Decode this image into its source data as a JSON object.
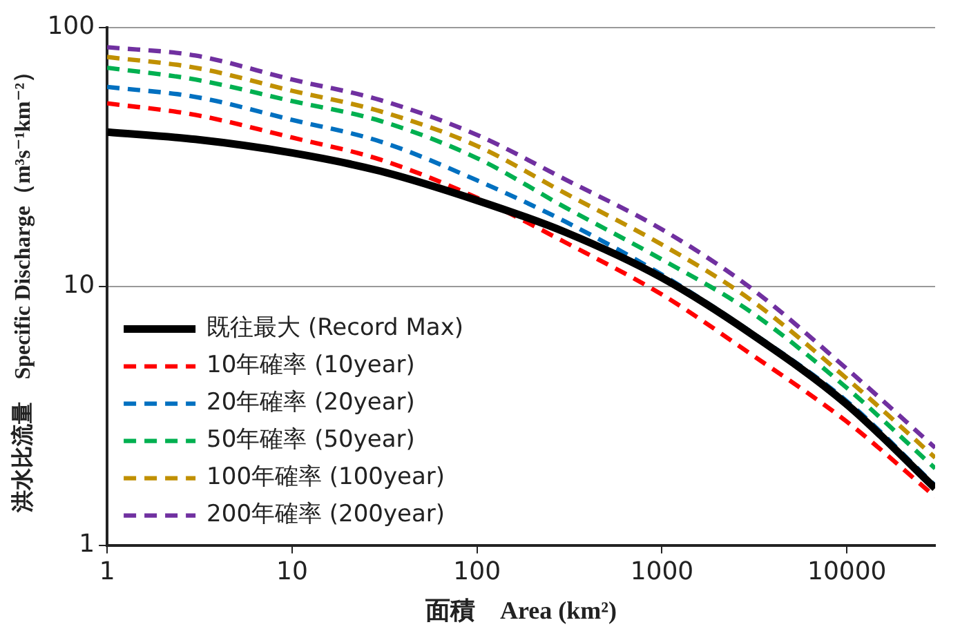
{
  "chart_data": {
    "type": "line",
    "xlabel": "面積　Area (km²)",
    "ylabel": "洪水比流量　Specific Discharge（m³s⁻¹km⁻²）",
    "x": [
      1,
      3,
      10,
      30,
      100,
      300,
      1000,
      3000,
      10000,
      30000
    ],
    "series": [
      {
        "name": "既往最大 (Record Max)",
        "color": "#000000",
        "line_style": "solid",
        "values": [
          39.5,
          37,
          32.8,
          27.9,
          21.5,
          16.2,
          10.8,
          6.6,
          3.5,
          1.66
        ]
      },
      {
        "name": "10年確率 (10year)",
        "color": "#ff0000",
        "values": [
          51,
          46,
          37.6,
          30.9,
          22,
          14.8,
          9.3,
          5.5,
          3.0,
          1.54
        ]
      },
      {
        "name": "20年確率 (20year)",
        "color": "#0070c0",
        "values": [
          59,
          54,
          44,
          36.3,
          25.7,
          17.8,
          11.1,
          6.7,
          3.6,
          1.7
        ]
      },
      {
        "name": "50年確率 (50year)",
        "color": "#00b050",
        "values": [
          70,
          63,
          52,
          43.6,
          31.3,
          20.2,
          12.7,
          8.0,
          4.05,
          1.98
        ]
      },
      {
        "name": "100年確率 (100year)",
        "color": "#c09000",
        "values": [
          77,
          70,
          57,
          47.5,
          34.9,
          22.9,
          14.5,
          8.9,
          4.4,
          2.18
        ]
      },
      {
        "name": "200年確率 (200year)",
        "color": "#7030a0",
        "values": [
          84,
          78,
          63,
          52.5,
          38.5,
          25.9,
          16.6,
          9.9,
          4.8,
          2.38
        ]
      }
    ],
    "log": "xy",
    "xlim": [
      1,
      30000
    ],
    "xticks": [
      1,
      10,
      100,
      1000,
      10000
    ],
    "ylim": [
      1,
      100
    ],
    "yticks": [
      1,
      10,
      100
    ],
    "grid": "y",
    "legend": "bottom left",
    "marker": "none",
    "line_style": "dashed"
  }
}
